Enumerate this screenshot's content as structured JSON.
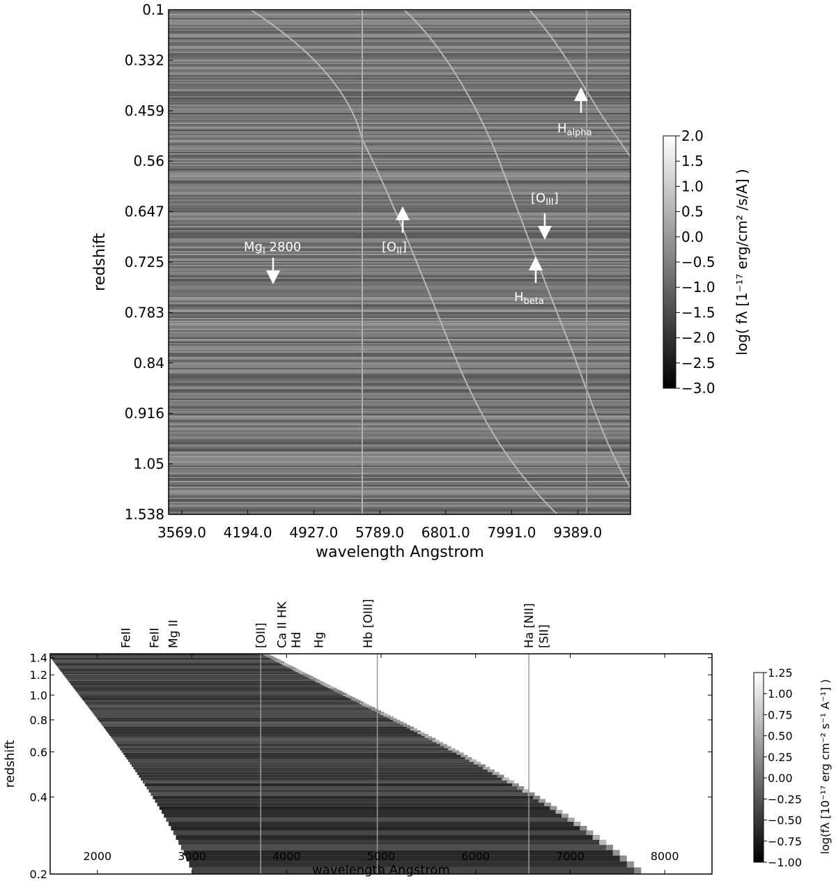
{
  "chart_data": [
    {
      "type": "heatmap",
      "xlabel": "wavelength Angstrom",
      "ylabel": "redshift",
      "x_tick_labels": [
        "3569.0",
        "4194.0",
        "4927.0",
        "5789.0",
        "6801.0",
        "7991.0",
        "9389.0"
      ],
      "y_tick_labels": [
        "0.1",
        "0.332",
        "0.459",
        "0.56",
        "0.647",
        "0.725",
        "0.783",
        "0.84",
        "0.916",
        "1.05",
        "1.538"
      ],
      "colorbar": {
        "label": "log( fλ [1⁻¹⁷ erg/cm² /s/A] )",
        "ticks": [
          "2.0",
          "1.5",
          "1.0",
          "0.5",
          "0.0",
          "−0.5",
          "−1.0",
          "−1.5",
          "−2.0",
          "−2.5",
          "−3.0"
        ],
        "range": [
          -3.0,
          2.0
        ]
      },
      "colormap": "grayscale",
      "annotations": [
        {
          "name": "H",
          "sub": "alpha",
          "arrow": "up"
        },
        {
          "name": "[O",
          "sub": "III",
          "suffix": "]",
          "arrow": "down"
        },
        {
          "name": "[O",
          "sub": "II",
          "suffix": "]",
          "arrow": "up"
        },
        {
          "name": "Mg",
          "sub": "I",
          "suffix": " 2800",
          "arrow": "down"
        },
        {
          "name": "H",
          "sub": "beta",
          "arrow": "up"
        }
      ]
    },
    {
      "type": "heatmap",
      "xlabel": "wavelength Angstrom",
      "ylabel": "redshift",
      "x_ticks": [
        2000,
        3000,
        4000,
        5000,
        6000,
        7000,
        8000
      ],
      "x_range": [
        1500,
        8500
      ],
      "y_ticks": [
        0.2,
        0.4,
        0.6,
        0.8,
        1.0,
        1.2,
        1.4
      ],
      "y_range": [
        0.2,
        1.45
      ],
      "colorbar": {
        "label": "log(fλ [10⁻¹⁷ erg cm⁻² s⁻¹ A⁻¹] )",
        "ticks": [
          "1.25",
          "1.00",
          "0.75",
          "0.50",
          "0.25",
          "0.00",
          "−0.25",
          "−0.50",
          "−0.75",
          "−1.00"
        ],
        "range": [
          -1.0,
          1.25
        ]
      },
      "colormap": "grayscale",
      "line_labels": [
        {
          "text": "FeII",
          "x": 2300
        },
        {
          "text": "FeII",
          "x": 2600
        },
        {
          "text": "Mg II",
          "x": 2800
        },
        {
          "text": "[OII]",
          "x": 3727
        },
        {
          "text": "Ca II HK",
          "x": 3950
        },
        {
          "text": "Hd",
          "x": 4102
        },
        {
          "text": "Hg",
          "x": 4340
        },
        {
          "text": "Hb [OIII]",
          "x": 4861
        },
        {
          "text": "Ha [NII]",
          "x": 6563
        },
        {
          "text": "[SII]",
          "x": 6720
        }
      ]
    }
  ]
}
